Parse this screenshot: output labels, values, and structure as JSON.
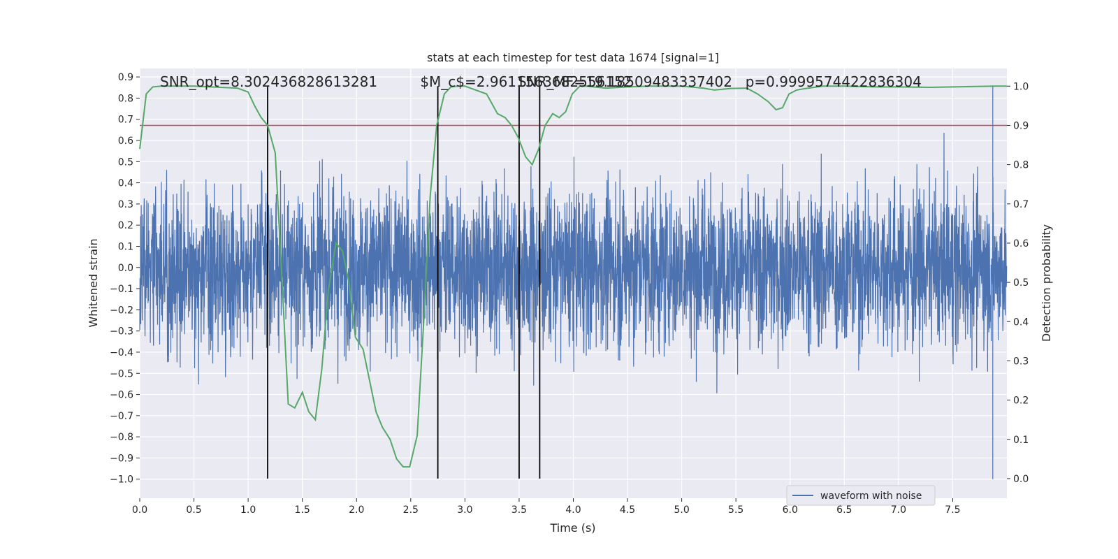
{
  "chart_data": {
    "type": "line",
    "title": "stats at each timestep for test data 1674 [signal=1]",
    "xlabel": "Time (s)",
    "ylabel": "Whitened strain",
    "y2label": "Detection probability",
    "xlim": [
      0.0,
      8.0
    ],
    "ylim": [
      -1.09,
      0.94
    ],
    "y2lim": [
      -0.05,
      1.045
    ],
    "xticks": [
      0.0,
      0.5,
      1.0,
      1.5,
      2.0,
      2.5,
      3.0,
      3.5,
      4.0,
      4.5,
      5.0,
      5.5,
      6.0,
      6.5,
      7.0,
      7.5
    ],
    "yticks": [
      0.9,
      0.8,
      0.7,
      0.6,
      0.5,
      0.4,
      0.3,
      0.2,
      0.1,
      0.0,
      -0.1,
      -0.2,
      -0.3,
      -0.4,
      -0.5,
      -0.6,
      -0.7,
      -0.8,
      -0.9,
      -1.0
    ],
    "y2ticks": [
      1.0,
      0.9,
      0.8,
      0.7,
      0.6,
      0.5,
      0.4,
      0.3,
      0.2,
      0.1,
      0.0
    ],
    "grid": true,
    "legend": {
      "placement": "lower-center",
      "entries": [
        "waveform with noise"
      ]
    },
    "annotations": [
      {
        "text": "SNR_opt=8.302436828613281",
        "x": 0.2
      },
      {
        "text": "$M_c$=2.9611563682556152",
        "x": 2.6
      },
      {
        "text": "SNR_MF=19.18509483337402",
        "x": 3.5
      },
      {
        "text": "p=0.9999574422836304",
        "x": 5.6
      }
    ],
    "vertical_lines": [
      1.18,
      2.75,
      3.5,
      3.69
    ],
    "threshold": 0.9,
    "series": [
      {
        "name": "waveform with noise",
        "axis": "left",
        "color": "#4c72b0",
        "envelope": {
          "typical_amplitude": 0.3,
          "peak_max": 0.86,
          "peak_min": -1.0,
          "duration": 8.0
        }
      },
      {
        "axis": "right",
        "color": "#55a868",
        "x": [
          0.0,
          0.06,
          0.12,
          0.2,
          0.5,
          0.9,
          1.0,
          1.06,
          1.12,
          1.18,
          1.25,
          1.31,
          1.37,
          1.43,
          1.5,
          1.56,
          1.62,
          1.68,
          1.74,
          1.81,
          1.87,
          1.93,
          1.99,
          2.06,
          2.12,
          2.18,
          2.24,
          2.31,
          2.37,
          2.43,
          2.49,
          2.56,
          2.62,
          2.68,
          2.74,
          2.81,
          2.87,
          2.93,
          3.0,
          3.2,
          3.3,
          3.37,
          3.43,
          3.49,
          3.56,
          3.62,
          3.68,
          3.74,
          3.81,
          3.87,
          3.93,
          3.99,
          4.06,
          4.12,
          4.3,
          4.5,
          4.7,
          4.9,
          5.0,
          5.2,
          5.3,
          5.45,
          5.6,
          5.7,
          5.8,
          5.87,
          5.93,
          5.99,
          6.06,
          6.12,
          6.3,
          6.5,
          6.8,
          7.0,
          7.3,
          7.5,
          7.9,
          8.0
        ],
        "y": [
          0.84,
          0.98,
          0.998,
          1.0,
          1.0,
          0.995,
          0.985,
          0.95,
          0.92,
          0.9,
          0.83,
          0.52,
          0.19,
          0.18,
          0.22,
          0.17,
          0.15,
          0.28,
          0.48,
          0.6,
          0.58,
          0.5,
          0.36,
          0.33,
          0.25,
          0.17,
          0.13,
          0.1,
          0.05,
          0.03,
          0.03,
          0.11,
          0.4,
          0.72,
          0.9,
          0.98,
          0.998,
          1.0,
          1.0,
          0.98,
          0.93,
          0.92,
          0.9,
          0.87,
          0.82,
          0.8,
          0.84,
          0.9,
          0.93,
          0.92,
          0.935,
          0.98,
          1.0,
          1.0,
          0.995,
          0.998,
          1.0,
          1.0,
          1.0,
          0.995,
          0.99,
          0.994,
          0.995,
          0.98,
          0.96,
          0.94,
          0.945,
          0.98,
          0.99,
          0.993,
          1.0,
          1.0,
          0.998,
          0.998,
          0.997,
          0.998,
          1.0,
          1.0
        ]
      }
    ]
  }
}
